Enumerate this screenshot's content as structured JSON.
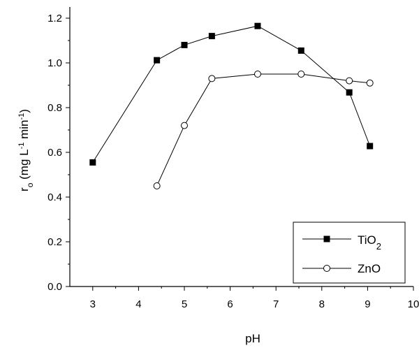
{
  "chart_data": {
    "type": "line",
    "xlabel": "pH",
    "ylabel": {
      "base": "r",
      "base_sub": "o",
      "open": " (mg L",
      "sup1": "-1",
      "mid": " min",
      "sup2": "-1",
      "close": ")"
    },
    "xlim": [
      2.5,
      10
    ],
    "ylim": [
      0,
      1.25
    ],
    "xticks": [
      3,
      4,
      5,
      6,
      7,
      8,
      9,
      10
    ],
    "yticks": [
      0.0,
      0.2,
      0.4,
      0.6,
      0.8,
      1.0,
      1.2
    ],
    "ytick_labels": [
      "0.0",
      "0.2",
      "0.4",
      "0.6",
      "0.8",
      "1.0",
      "1.2"
    ],
    "grid": false,
    "legend_position": "bottom-right",
    "series": [
      {
        "name": "TiO2",
        "label_base": "TiO",
        "label_sub": "2",
        "marker": "filled-square",
        "color": "#000000",
        "x": [
          3.0,
          4.4,
          5.0,
          5.6,
          6.6,
          7.55,
          8.6,
          9.05
        ],
        "y": [
          0.555,
          1.012,
          1.08,
          1.12,
          1.165,
          1.055,
          0.868,
          0.628
        ]
      },
      {
        "name": "ZnO",
        "label_base": "ZnO",
        "label_sub": "",
        "marker": "open-circle",
        "color": "#000000",
        "x": [
          4.4,
          5.0,
          5.6,
          6.6,
          7.55,
          8.6,
          9.05
        ],
        "y": [
          0.45,
          0.72,
          0.93,
          0.95,
          0.95,
          0.92,
          0.91
        ]
      }
    ]
  }
}
